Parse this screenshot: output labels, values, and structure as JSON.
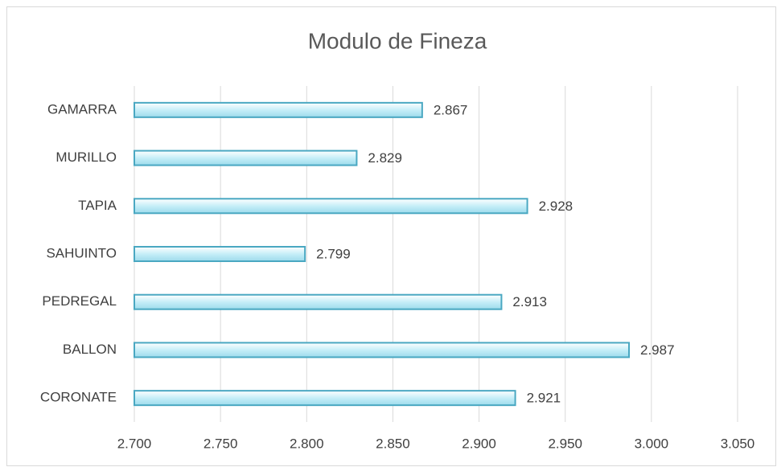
{
  "chart_data": {
    "type": "bar",
    "orientation": "horizontal",
    "title": "Modulo de Fineza",
    "categories": [
      "GAMARRA",
      "MURILLO",
      "TAPIA",
      "SAHUINTO",
      "PEDREGAL",
      "BALLON",
      "CORONATE"
    ],
    "values": [
      2.867,
      2.829,
      2.928,
      2.799,
      2.913,
      2.987,
      2.921
    ],
    "color": "#c6eef8",
    "edge_color": "#4aa8c2",
    "xlim": [
      2.7,
      3.05
    ],
    "xticks": [
      {
        "value": 2.7,
        "label": "2.700"
      },
      {
        "value": 2.75,
        "label": "2.750"
      },
      {
        "value": 2.8,
        "label": "2.800"
      },
      {
        "value": 2.85,
        "label": "2.850"
      },
      {
        "value": 2.9,
        "label": "2.900"
      },
      {
        "value": 2.95,
        "label": "2.950"
      },
      {
        "value": 3.0,
        "label": "3.000"
      },
      {
        "value": 3.05,
        "label": "3.050"
      }
    ],
    "grid": true
  }
}
